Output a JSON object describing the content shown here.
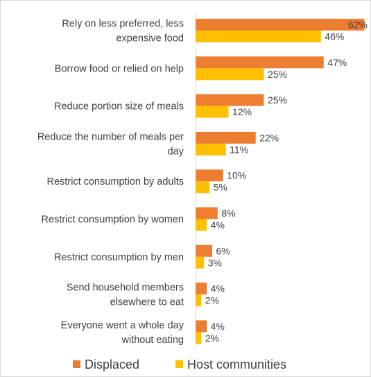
{
  "chart_data": {
    "type": "bar",
    "orientation": "horizontal",
    "title": "",
    "xlabel": "",
    "ylabel": "",
    "xlim": [
      0,
      62
    ],
    "grid": false,
    "legend_position": "bottom",
    "categories": [
      [
        "Rely on less preferred, less",
        "expensive food"
      ],
      [
        "Borrow food or relied on help"
      ],
      [
        "Reduce portion size of meals"
      ],
      [
        "Reduce the number of meals per",
        "day"
      ],
      [
        "Restrict consumption by adults"
      ],
      [
        "Restrict consumption by women"
      ],
      [
        "Restrict consumption by men"
      ],
      [
        "Send household members",
        "elsewhere to eat"
      ],
      [
        "Everyone went a whole day",
        "without eating"
      ]
    ],
    "series": [
      {
        "name": "Displaced",
        "color": "#ED7D31",
        "values": [
          62,
          47,
          25,
          22,
          10,
          8,
          6,
          4,
          4
        ],
        "labels": [
          "62%",
          "47%",
          "25%",
          "22%",
          "10%",
          "8%",
          "6%",
          "4%",
          "4%"
        ]
      },
      {
        "name": "Host communities",
        "color": "#FFC000",
        "values": [
          46,
          25,
          12,
          11,
          5,
          4,
          3,
          2,
          2
        ],
        "labels": [
          "46%",
          "25%",
          "12%",
          "11%",
          "5%",
          "4%",
          "3%",
          "2%",
          "2%"
        ]
      }
    ]
  }
}
